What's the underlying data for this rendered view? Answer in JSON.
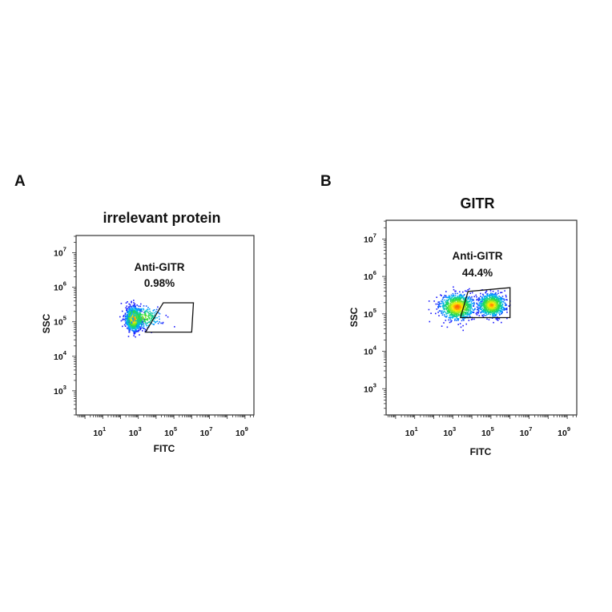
{
  "chart_data": [
    {
      "type": "scatter",
      "panel_letter": "A",
      "title": "irrelevant protein",
      "xlabel": "FITC",
      "ylabel": "SSC",
      "xscale": "log",
      "yscale": "log",
      "xlim_log10": [
        -0.5,
        9.5
      ],
      "ylim_log10": [
        2.3,
        7.5
      ],
      "xticks": [
        {
          "base": "10",
          "exp": "1",
          "log": 1
        },
        {
          "base": "10",
          "exp": "3",
          "log": 3
        },
        {
          "base": "10",
          "exp": "5",
          "log": 5
        },
        {
          "base": "10",
          "exp": "7",
          "log": 7
        },
        {
          "base": "10",
          "exp": "9",
          "log": 9
        }
      ],
      "yticks": [
        {
          "base": "10",
          "exp": "3",
          "log": 3
        },
        {
          "base": "10",
          "exp": "4",
          "log": 4
        },
        {
          "base": "10",
          "exp": "5",
          "log": 5
        },
        {
          "base": "10",
          "exp": "6",
          "log": 6
        },
        {
          "base": "10",
          "exp": "7",
          "log": 7
        }
      ],
      "gate": {
        "name": "Anti-GITR",
        "percent": "0.98%",
        "polygon_log10": [
          [
            3.4,
            4.7
          ],
          [
            4.4,
            5.55
          ],
          [
            6.1,
            5.55
          ],
          [
            6.0,
            4.7
          ]
        ]
      },
      "populations": [
        {
          "center_log10": [
            2.7,
            5.1
          ],
          "spread_log10": [
            0.22,
            0.17
          ],
          "intensity": 1.0
        },
        {
          "center_log10": [
            3.3,
            5.15
          ],
          "spread_log10": [
            0.5,
            0.16
          ],
          "intensity": 0.25
        }
      ],
      "colormap": [
        "#1a1aff",
        "#00b4ff",
        "#22dd44",
        "#ffee00",
        "#ff3300"
      ]
    },
    {
      "type": "scatter",
      "panel_letter": "B",
      "title": "GITR",
      "xlabel": "FITC",
      "ylabel": "SSC",
      "xscale": "log",
      "yscale": "log",
      "xlim_log10": [
        -0.5,
        9.5
      ],
      "ylim_log10": [
        2.3,
        7.5
      ],
      "xticks": [
        {
          "base": "10",
          "exp": "1",
          "log": 1
        },
        {
          "base": "10",
          "exp": "3",
          "log": 3
        },
        {
          "base": "10",
          "exp": "5",
          "log": 5
        },
        {
          "base": "10",
          "exp": "7",
          "log": 7
        },
        {
          "base": "10",
          "exp": "9",
          "log": 9
        }
      ],
      "yticks": [
        {
          "base": "10",
          "exp": "3",
          "log": 3
        },
        {
          "base": "10",
          "exp": "4",
          "log": 4
        },
        {
          "base": "10",
          "exp": "5",
          "log": 5
        },
        {
          "base": "10",
          "exp": "6",
          "log": 6
        },
        {
          "base": "10",
          "exp": "7",
          "log": 7
        }
      ],
      "gate": {
        "name": "Anti-GITR",
        "percent": "44.4%",
        "polygon_log10": [
          [
            3.4,
            4.9
          ],
          [
            3.8,
            5.6
          ],
          [
            6.0,
            5.7
          ],
          [
            6.0,
            4.9
          ]
        ]
      },
      "populations": [
        {
          "center_log10": [
            3.2,
            5.2
          ],
          "spread_log10": [
            0.45,
            0.17
          ],
          "intensity": 1.0
        },
        {
          "center_log10": [
            5.0,
            5.25
          ],
          "spread_log10": [
            0.35,
            0.15
          ],
          "intensity": 0.85
        }
      ],
      "colormap": [
        "#1a1aff",
        "#00b4ff",
        "#22dd44",
        "#ffee00",
        "#ff3300"
      ]
    }
  ]
}
